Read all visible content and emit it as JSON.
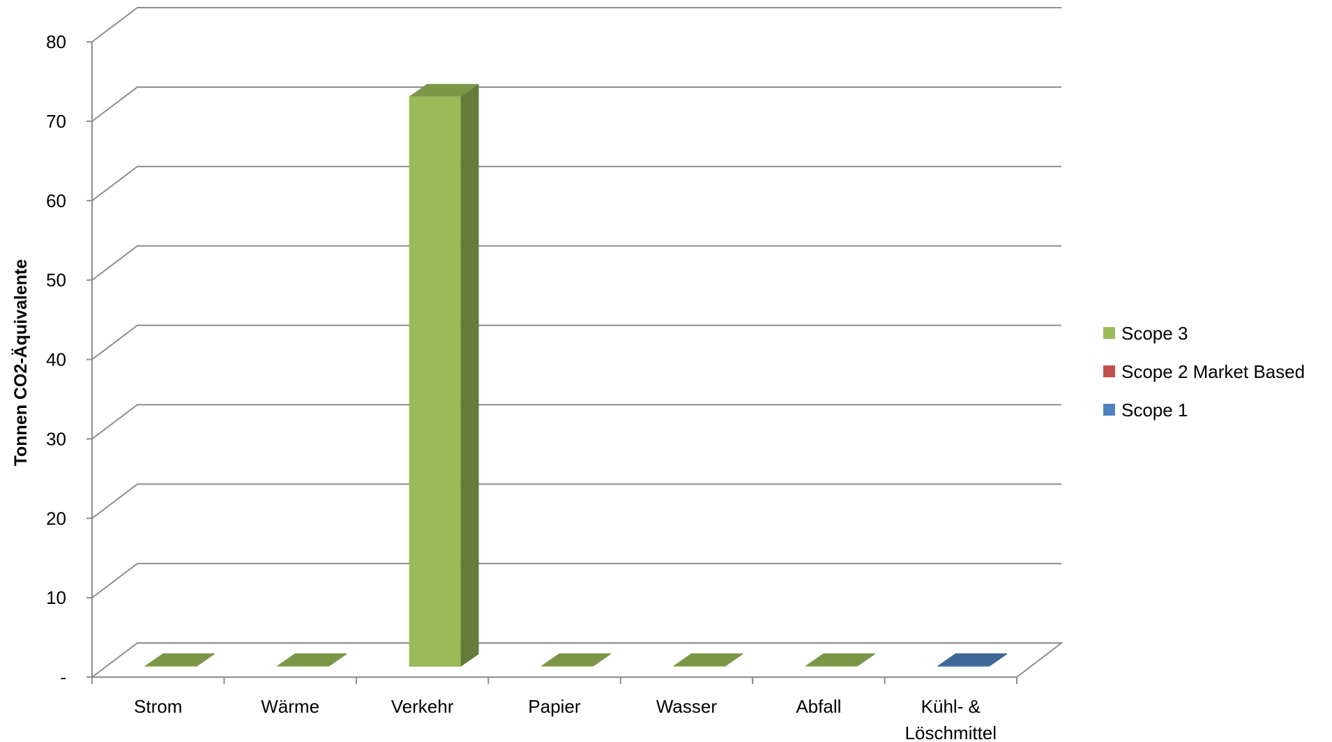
{
  "chart_data": {
    "type": "bar",
    "title": "",
    "xlabel": "",
    "ylabel": "Tonnen CO2-Äquivalente",
    "ylim": [
      0,
      80
    ],
    "y_ticks": [
      {
        "value": 0,
        "label": "-"
      },
      {
        "value": 10,
        "label": "10"
      },
      {
        "value": 20,
        "label": "20"
      },
      {
        "value": 30,
        "label": "30"
      },
      {
        "value": 40,
        "label": "40"
      },
      {
        "value": 50,
        "label": "50"
      },
      {
        "value": 60,
        "label": "60"
      },
      {
        "value": 70,
        "label": "70"
      },
      {
        "value": 80,
        "label": "80"
      }
    ],
    "stacked": true,
    "three_d": true,
    "grid": true,
    "legend_position": "right",
    "categories": [
      [
        "Strom"
      ],
      [
        "Wärme"
      ],
      [
        "Verkehr"
      ],
      [
        "Papier"
      ],
      [
        "Wasser"
      ],
      [
        "Abfall"
      ],
      [
        "Kühl- &",
        "Löschmittel"
      ]
    ],
    "series": [
      {
        "name": "Scope 1",
        "color": "#4f81bd",
        "values": [
          0,
          0,
          0,
          0,
          0,
          0,
          0.1
        ]
      },
      {
        "name": "Scope 2 Market Based",
        "color": "#c0504d",
        "values": [
          0,
          0,
          0,
          0,
          0,
          0,
          0
        ]
      },
      {
        "name": "Scope 3",
        "color": "#9bbb59",
        "values": [
          0.1,
          0.1,
          71.8,
          0.1,
          0.1,
          0.1,
          0
        ]
      }
    ],
    "legend_order": [
      "Scope 3",
      "Scope 2 Market Based",
      "Scope 1"
    ]
  }
}
